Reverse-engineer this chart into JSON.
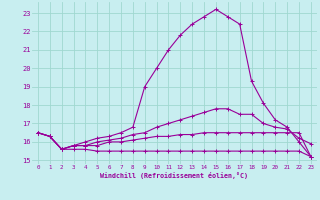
{
  "xlabel": "Windchill (Refroidissement éolien,°C)",
  "xlim": [
    -0.5,
    23.5
  ],
  "ylim": [
    14.8,
    23.6
  ],
  "yticks": [
    15,
    16,
    17,
    18,
    19,
    20,
    21,
    22,
    23
  ],
  "xticks": [
    0,
    1,
    2,
    3,
    4,
    5,
    6,
    7,
    8,
    9,
    10,
    11,
    12,
    13,
    14,
    15,
    16,
    17,
    18,
    19,
    20,
    21,
    22,
    23
  ],
  "bg_color": "#c8eef0",
  "grid_color": "#a0d8d0",
  "line_color": "#990099",
  "lines": [
    [
      16.5,
      16.3,
      15.6,
      15.6,
      15.6,
      15.5,
      15.5,
      15.5,
      15.5,
      15.5,
      15.5,
      15.5,
      15.5,
      15.5,
      15.5,
      15.5,
      15.5,
      15.5,
      15.5,
      15.5,
      15.5,
      15.5,
      15.5,
      15.2
    ],
    [
      16.5,
      16.3,
      15.6,
      15.8,
      15.8,
      15.8,
      16.0,
      16.0,
      16.1,
      16.2,
      16.3,
      16.3,
      16.4,
      16.4,
      16.5,
      16.5,
      16.5,
      16.5,
      16.5,
      16.5,
      16.5,
      16.5,
      16.5,
      15.2
    ],
    [
      16.5,
      16.3,
      15.6,
      15.8,
      15.8,
      16.0,
      16.1,
      16.2,
      16.4,
      16.5,
      16.8,
      17.0,
      17.2,
      17.4,
      17.6,
      17.8,
      17.8,
      17.5,
      17.5,
      17.0,
      16.8,
      16.7,
      16.2,
      15.9
    ],
    [
      16.5,
      16.3,
      15.6,
      15.8,
      16.0,
      16.2,
      16.3,
      16.5,
      16.8,
      19.0,
      20.0,
      21.0,
      21.8,
      22.4,
      22.8,
      23.2,
      22.8,
      22.4,
      19.3,
      18.1,
      17.2,
      16.8,
      16.0,
      15.2
    ]
  ]
}
